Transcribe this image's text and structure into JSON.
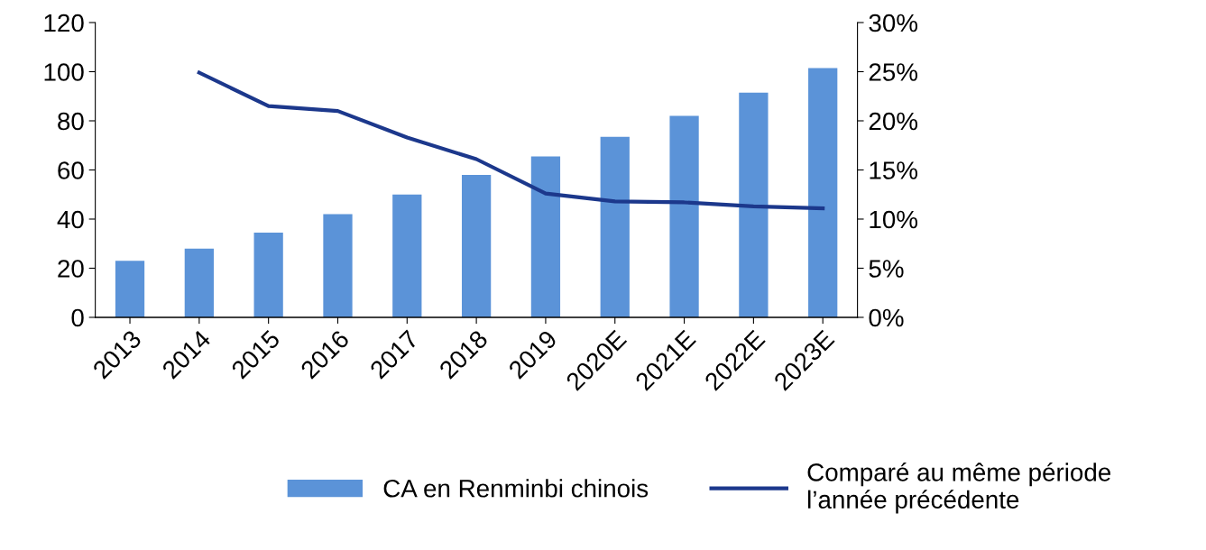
{
  "chart_data": {
    "type": "bar",
    "categories": [
      "2013",
      "2014",
      "2015",
      "2016",
      "2017",
      "2018",
      "2019",
      "2020E",
      "2021E",
      "2022E",
      "2023E"
    ],
    "series": [
      {
        "name": "CA en Renminbi chinois",
        "color": "#5b93d8",
        "values": [
          23,
          28,
          34.5,
          42,
          50,
          58,
          65.5,
          73.5,
          82,
          91.5,
          101.5
        ]
      },
      {
        "name": "Comparé au même période\nl’année précédente",
        "type": "line",
        "axis": "y2",
        "color": "#1c388c",
        "values": [
          null,
          24.9,
          21.5,
          21,
          18.3,
          16.1,
          12.6,
          11.8,
          11.7,
          11.3,
          11.1
        ]
      }
    ],
    "ylim": [
      0,
      120
    ],
    "yticks": [
      0,
      20,
      40,
      60,
      80,
      100,
      120
    ],
    "y2lim": [
      0,
      30
    ],
    "y2ticks": [
      {
        "value": 0,
        "label": "0%"
      },
      {
        "value": 5,
        "label": "5%"
      },
      {
        "value": 10,
        "label": "10%"
      },
      {
        "value": 15,
        "label": "15%"
      },
      {
        "value": 20,
        "label": "20%"
      },
      {
        "value": 25,
        "label": "25%"
      },
      {
        "value": 30,
        "label": "30%"
      }
    ],
    "legend": "bottom",
    "marker": "none",
    "line_style": "solid"
  }
}
